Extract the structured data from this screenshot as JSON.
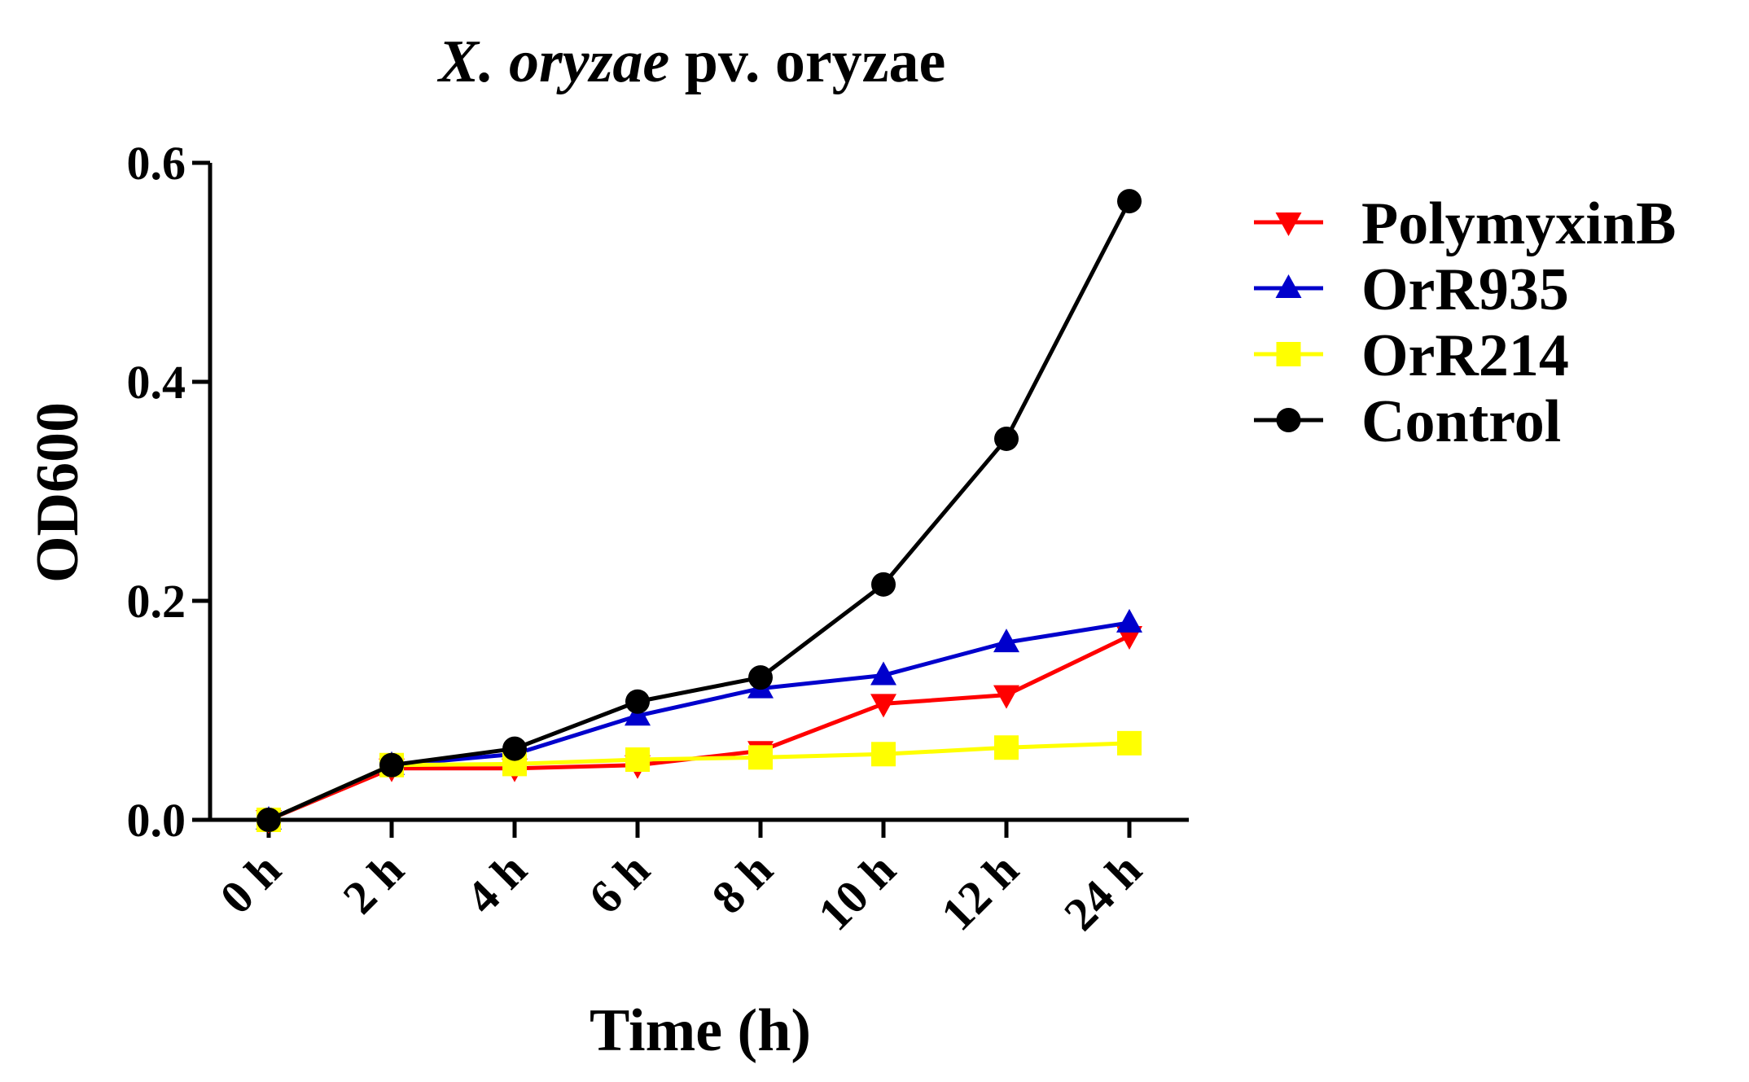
{
  "chart_data": {
    "type": "line",
    "title": {
      "italic": "X. oryzae",
      "rest": " pv. oryzae"
    },
    "xlabel": "Time (h)",
    "ylabel": "OD600",
    "categories": [
      "0 h",
      "2 h",
      "4 h",
      "6 h",
      "8 h",
      "10 h",
      "12 h",
      "24 h"
    ],
    "ylim": [
      0,
      0.6
    ],
    "yticks": [
      0.0,
      0.2,
      0.4,
      0.6
    ],
    "ytick_labels": [
      "0.0",
      "0.2",
      "0.4",
      "0.6"
    ],
    "legend_position": "top-right",
    "series": [
      {
        "name": "PolymyxinB",
        "color": "#ff0000",
        "marker": "triangle-down",
        "values": [
          0.0,
          0.047,
          0.047,
          0.05,
          0.063,
          0.106,
          0.114,
          0.168
        ]
      },
      {
        "name": "OrR935",
        "color": "#0000cc",
        "marker": "triangle-up",
        "values": [
          0.0,
          0.05,
          0.06,
          0.095,
          0.12,
          0.132,
          0.162,
          0.18
        ]
      },
      {
        "name": "OrR214",
        "color": "#ffff00",
        "marker": "square",
        "values": [
          0.0,
          0.05,
          0.051,
          0.055,
          0.057,
          0.06,
          0.066,
          0.07
        ]
      },
      {
        "name": "Control",
        "color": "#000000",
        "marker": "circle",
        "values": [
          0.0,
          0.05,
          0.065,
          0.108,
          0.13,
          0.215,
          0.348,
          0.565
        ]
      }
    ]
  }
}
